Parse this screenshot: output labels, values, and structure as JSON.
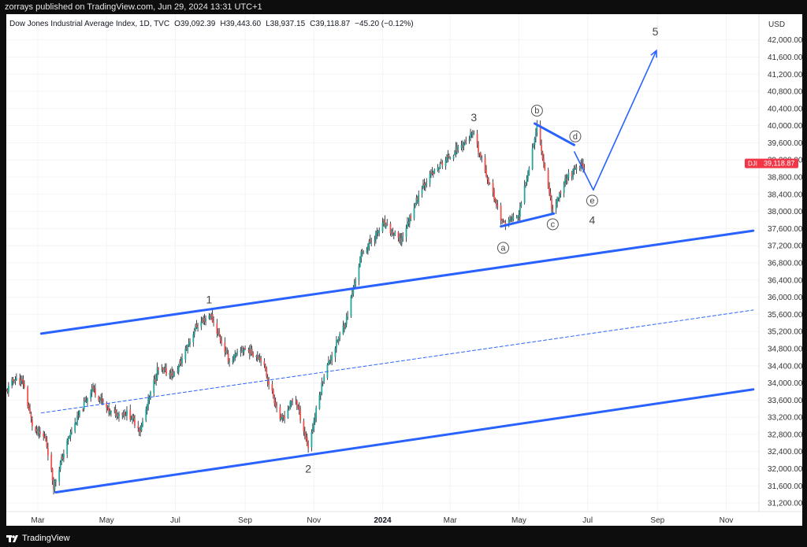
{
  "header": {
    "published": "zorrays published on TradingView.com, Jun 29, 2024 13:31 UTC+1"
  },
  "footer": {
    "brand": "TradingView"
  },
  "colors": {
    "up": "#26a69a",
    "down": "#ef5350",
    "wick": "#131722",
    "trendline": "#2962ff",
    "price_badge": "#f23645"
  },
  "chart_data": {
    "type": "candlestick",
    "instrument": "Dow Jones Industrial Average Index, 1D, TVC",
    "ohlc_label": {
      "o_label": "O",
      "o": "39,092.39",
      "h_label": "H",
      "h": "39,443.60",
      "l_label": "L",
      "l": "38,937.15",
      "c_label": "C",
      "c": "39,118.87",
      "change": "−45.20 (−0.12%)"
    },
    "currency": "USD",
    "last_price": {
      "symbol": "DJI",
      "value": "39,118.87",
      "num": 39118.87
    },
    "ylim": [
      31000,
      42600
    ],
    "x_range": [
      "2023-02-01",
      "2024-11-30"
    ],
    "y_ticks": [
      "42,000.00",
      "41,600.00",
      "41,200.00",
      "40,800.00",
      "40,400.00",
      "40,000.00",
      "39,600.00",
      "39,200.00",
      "38,800.00",
      "38,400.00",
      "38,000.00",
      "37,600.00",
      "37,200.00",
      "36,800.00",
      "36,400.00",
      "36,000.00",
      "35,600.00",
      "35,200.00",
      "34,800.00",
      "34,400.00",
      "34,000.00",
      "33,600.00",
      "33,200.00",
      "32,800.00",
      "32,400.00",
      "32,000.00",
      "31,600.00",
      "31,200.00"
    ],
    "x_ticks": [
      {
        "label": "Mar",
        "date": "2023-03-01"
      },
      {
        "label": "May",
        "date": "2023-05-01"
      },
      {
        "label": "Jul",
        "date": "2023-07-01"
      },
      {
        "label": "Sep",
        "date": "2023-09-01"
      },
      {
        "label": "Nov",
        "date": "2023-11-01"
      },
      {
        "label": "2024",
        "date": "2024-01-01",
        "bold": true
      },
      {
        "label": "Mar",
        "date": "2024-03-01"
      },
      {
        "label": "May",
        "date": "2024-05-01"
      },
      {
        "label": "Jul",
        "date": "2024-07-01"
      },
      {
        "label": "Sep",
        "date": "2024-09-01"
      },
      {
        "label": "Nov",
        "date": "2024-11-01"
      }
    ],
    "price_path": [
      {
        "date": "2023-02-01",
        "price": 33800
      },
      {
        "date": "2023-02-08",
        "price": 34100
      },
      {
        "date": "2023-02-16",
        "price": 34000
      },
      {
        "date": "2023-02-25",
        "price": 32900
      },
      {
        "date": "2023-03-08",
        "price": 32700
      },
      {
        "date": "2023-03-15",
        "price": 31600
      },
      {
        "date": "2023-03-28",
        "price": 32700
      },
      {
        "date": "2023-04-18",
        "price": 33900
      },
      {
        "date": "2023-05-04",
        "price": 33300
      },
      {
        "date": "2023-05-20",
        "price": 33300
      },
      {
        "date": "2023-05-31",
        "price": 32900
      },
      {
        "date": "2023-06-15",
        "price": 34300
      },
      {
        "date": "2023-07-01",
        "price": 34200
      },
      {
        "date": "2023-07-19",
        "price": 35300
      },
      {
        "date": "2023-08-01",
        "price": 35600
      },
      {
        "date": "2023-08-18",
        "price": 34500
      },
      {
        "date": "2023-08-31",
        "price": 34800
      },
      {
        "date": "2023-09-15",
        "price": 34600
      },
      {
        "date": "2023-10-03",
        "price": 33100
      },
      {
        "date": "2023-10-15",
        "price": 33700
      },
      {
        "date": "2023-10-27",
        "price": 32500
      },
      {
        "date": "2023-11-10",
        "price": 34200
      },
      {
        "date": "2023-11-30",
        "price": 35500
      },
      {
        "date": "2023-12-13",
        "price": 37000
      },
      {
        "date": "2024-01-02",
        "price": 37700
      },
      {
        "date": "2024-01-17",
        "price": 37300
      },
      {
        "date": "2024-02-05",
        "price": 38600
      },
      {
        "date": "2024-02-22",
        "price": 39100
      },
      {
        "date": "2024-03-21",
        "price": 39800
      },
      {
        "date": "2024-04-17",
        "price": 37700
      },
      {
        "date": "2024-05-01",
        "price": 37900
      },
      {
        "date": "2024-05-17",
        "price": 40000
      },
      {
        "date": "2024-05-31",
        "price": 38000
      },
      {
        "date": "2024-06-12",
        "price": 38800
      },
      {
        "date": "2024-06-28",
        "price": 39100
      }
    ],
    "wave_labels": [
      {
        "text": "1",
        "date": "2023-07-31",
        "price": 35950,
        "circled": false
      },
      {
        "text": "2",
        "date": "2023-10-27",
        "price": 32000,
        "circled": false
      },
      {
        "text": "3",
        "date": "2024-03-22",
        "price": 40200,
        "circled": false
      },
      {
        "text": "a",
        "date": "2024-04-17",
        "price": 37150,
        "circled": true
      },
      {
        "text": "b",
        "date": "2024-05-17",
        "price": 40350,
        "circled": true
      },
      {
        "text": "c",
        "date": "2024-05-31",
        "price": 37700,
        "circled": true
      },
      {
        "text": "d",
        "date": "2024-06-20",
        "price": 39750,
        "circled": true
      },
      {
        "text": "e",
        "date": "2024-07-05",
        "price": 38250,
        "circled": true
      },
      {
        "text": "4",
        "date": "2024-07-05",
        "price": 37800,
        "circled": false
      },
      {
        "text": "5",
        "date": "2024-08-30",
        "price": 42200,
        "circled": false
      }
    ],
    "lines": [
      {
        "name": "channel-upper",
        "style": "solid",
        "from": {
          "date": "2023-03-04",
          "price": 35150
        },
        "to": {
          "date": "2024-11-25",
          "price": 37550
        }
      },
      {
        "name": "channel-middle",
        "style": "dashed",
        "from": {
          "date": "2023-03-04",
          "price": 33300
        },
        "to": {
          "date": "2024-11-25",
          "price": 35700
        }
      },
      {
        "name": "channel-lower",
        "style": "solid",
        "from": {
          "date": "2023-03-17",
          "price": 31450
        },
        "to": {
          "date": "2024-11-25",
          "price": 33850
        }
      },
      {
        "name": "triangle-upper",
        "style": "solid",
        "from": {
          "date": "2024-05-15",
          "price": 40050
        },
        "to": {
          "date": "2024-06-19",
          "price": 39550
        }
      },
      {
        "name": "triangle-lower",
        "style": "solid",
        "from": {
          "date": "2024-04-15",
          "price": 37650
        },
        "to": {
          "date": "2024-06-01",
          "price": 37950
        }
      }
    ],
    "projection": [
      {
        "date": "2024-06-19",
        "price": 39400
      },
      {
        "date": "2024-07-06",
        "price": 38500
      },
      {
        "date": "2024-08-31",
        "price": 41750
      }
    ]
  }
}
